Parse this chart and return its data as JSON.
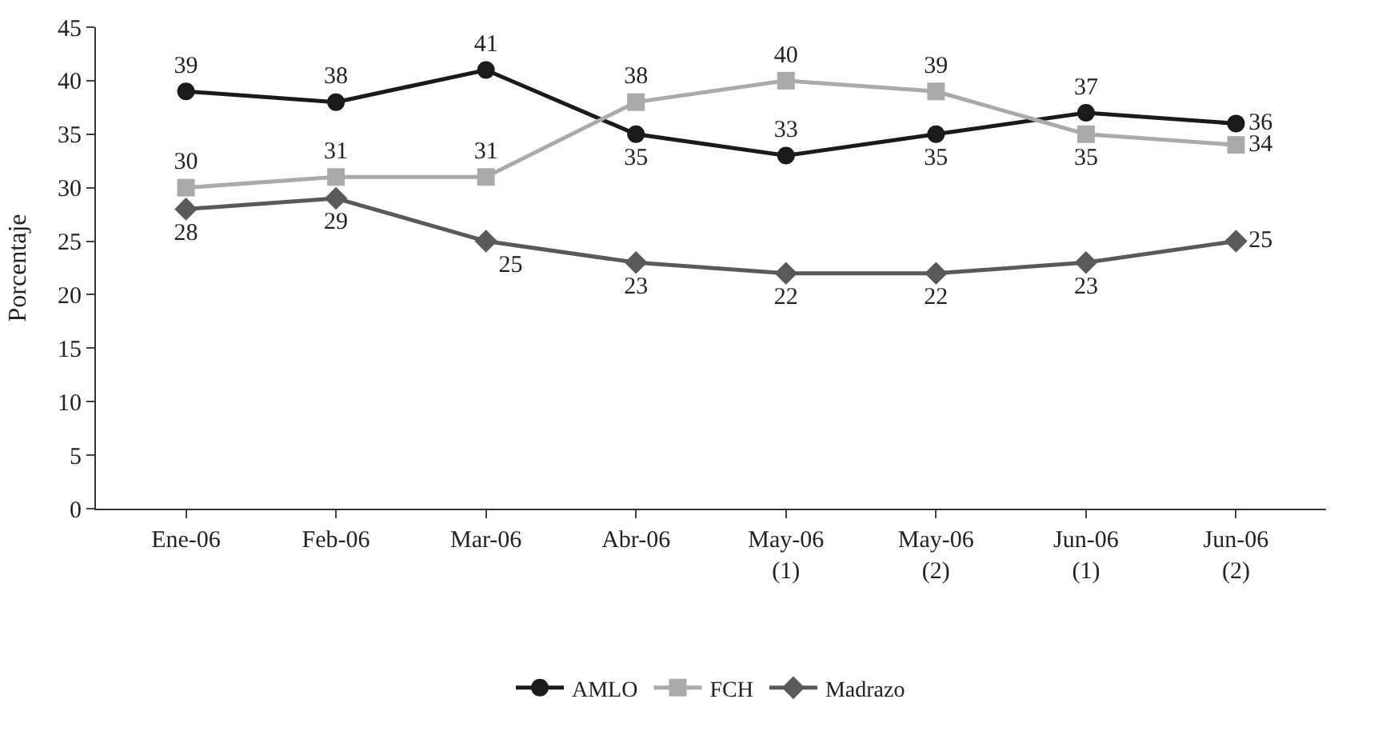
{
  "chart_data": {
    "type": "line",
    "ylabel": "Porcentaje",
    "categories": [
      "Ene-06",
      "Feb-06",
      "Mar-06",
      "Abr-06",
      "May-06\n(1)",
      "May-06\n(2)",
      "Jun-06\n(1)",
      "Jun-06\n(2)"
    ],
    "series": [
      {
        "name": "AMLO",
        "color": "#1a1a1a",
        "marker": "circle",
        "values": [
          39,
          38,
          41,
          35,
          33,
          35,
          37,
          36
        ]
      },
      {
        "name": "FCH",
        "color": "#aaaaaa",
        "marker": "square",
        "values": [
          30,
          31,
          31,
          38,
          40,
          39,
          35,
          34
        ]
      },
      {
        "name": "Madrazo",
        "color": "#595959",
        "marker": "diamond",
        "values": [
          28,
          29,
          25,
          23,
          22,
          22,
          23,
          25
        ]
      }
    ],
    "ylim": [
      0,
      45
    ],
    "yticks": [
      0,
      5,
      10,
      15,
      20,
      25,
      30,
      35,
      40,
      45
    ],
    "legend": "bottom",
    "data_labels": true,
    "line_style": "solid"
  }
}
